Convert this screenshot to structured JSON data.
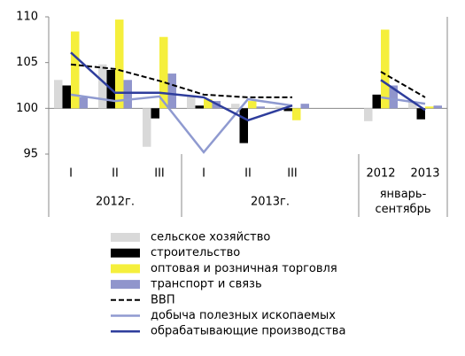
{
  "chart_data": {
    "type": "bar-line",
    "categories": [
      "I",
      "II",
      "III",
      "I",
      "II",
      "III",
      null,
      "2012",
      "2013"
    ],
    "groups": [
      {
        "label": [
          "2012г."
        ],
        "span": 3
      },
      {
        "label": [
          "2013г."
        ],
        "span": 4
      },
      {
        "label": [
          "январь-",
          "сентябрь"
        ],
        "span": 2
      }
    ],
    "ylim": [
      95,
      110
    ],
    "yticks": [
      95,
      100,
      105,
      110
    ],
    "baseline": 100,
    "series": [
      {
        "name": "сельское хозяйство",
        "kind": "bar",
        "color": "#d9d9d9",
        "values": [
          103.1,
          104.8,
          95.8,
          101.3,
          100.5,
          100.2,
          null,
          98.6,
          100.8
        ]
      },
      {
        "name": "строительство",
        "kind": "bar",
        "color": "#000000",
        "values": [
          102.5,
          104.2,
          98.9,
          100.3,
          96.2,
          99.7,
          null,
          101.5,
          98.8
        ]
      },
      {
        "name": "оптовая и розничная торговля",
        "kind": "bar",
        "color": "#f5ef3c",
        "values": [
          108.4,
          109.7,
          107.8,
          101.0,
          100.8,
          98.7,
          null,
          108.6,
          100.2
        ]
      },
      {
        "name": "транспорт  и связь",
        "kind": "bar",
        "color": "#9095cc",
        "values": [
          101.2,
          103.1,
          103.8,
          100.8,
          100.2,
          100.5,
          null,
          102.5,
          100.3
        ]
      },
      {
        "name": "ВВП",
        "kind": "line",
        "dash": true,
        "color": "#000000",
        "values": [
          104.8,
          104.3,
          103.0,
          101.5,
          101.2,
          101.2,
          null,
          104.0,
          101.2
        ]
      },
      {
        "name": "добыча полезных ископаемых",
        "kind": "line",
        "color": "#8f9ad0",
        "values": [
          101.5,
          100.8,
          101.3,
          95.2,
          101.0,
          100.3,
          null,
          101.2,
          100.5
        ]
      },
      {
        "name": "обрабатывающие производства",
        "kind": "line",
        "color": "#2e3d9c",
        "values": [
          106.1,
          101.7,
          101.7,
          101.2,
          98.7,
          100.3,
          null,
          103.1,
          99.8
        ]
      }
    ]
  }
}
